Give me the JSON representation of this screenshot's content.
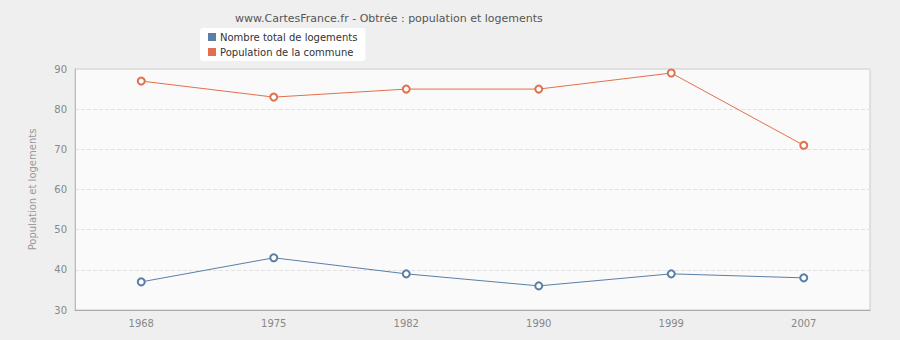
{
  "chart_data": {
    "type": "line",
    "title": "www.CartesFrance.fr - Obtrée : population et logements",
    "y_label": "Population et logements",
    "categories": [
      "1968",
      "1975",
      "1982",
      "1990",
      "1999",
      "2007"
    ],
    "series": [
      {
        "name": "Nombre total de logements",
        "color": "#5a7ea8",
        "values": [
          37,
          43,
          39,
          36,
          39,
          38
        ]
      },
      {
        "name": "Population de la commune",
        "color": "#e0714c",
        "values": [
          87,
          83,
          85,
          85,
          89,
          71
        ]
      }
    ],
    "ylim": [
      30,
      90
    ],
    "yticks": [
      30,
      40,
      50,
      60,
      70,
      80,
      90
    ],
    "grid": true,
    "legend": "top",
    "marker": "circle"
  }
}
